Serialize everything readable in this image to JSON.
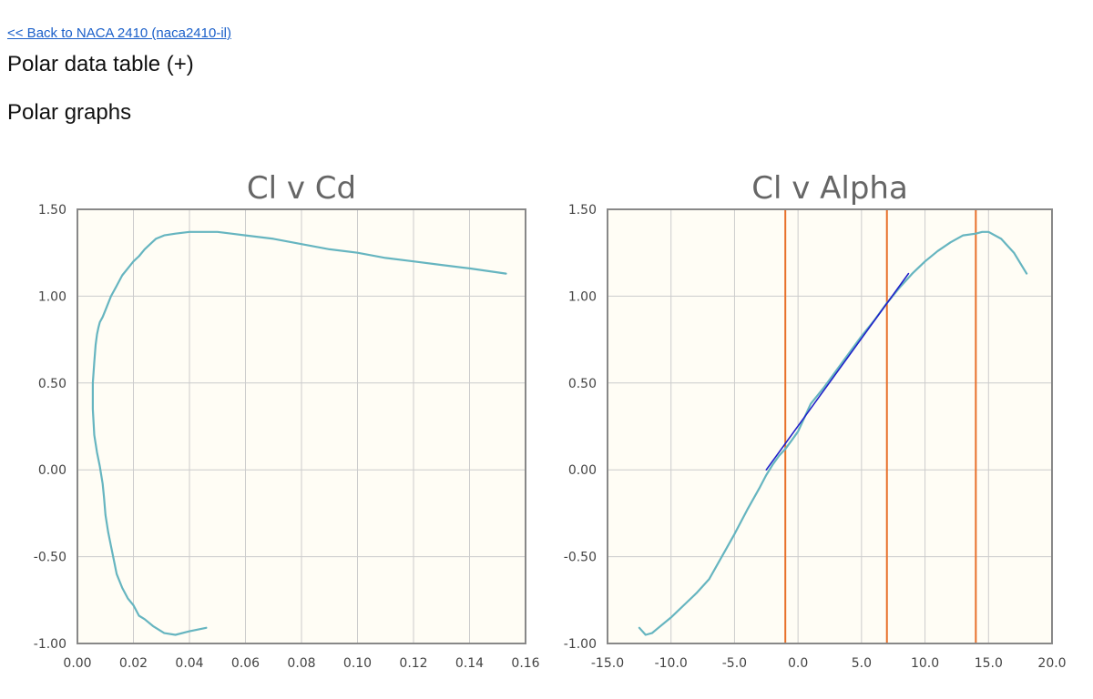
{
  "page": {
    "back_link": "<< Back to NACA 2410 (naca2410-il)",
    "polar_table_heading": "Polar data table (+)",
    "polar_graphs_heading": "Polar graphs"
  },
  "colors": {
    "plot_background": "#fffdf5",
    "grid": "#cccccc",
    "frame": "#888888",
    "curve": "#66b5c0",
    "fit_line": "#1f1fc9",
    "marker_lines": "#e8702a"
  },
  "chart_data": [
    {
      "type": "line",
      "title": "Cl v Cd",
      "xlabel": "",
      "ylabel": "",
      "xlim": [
        0.0,
        0.16
      ],
      "ylim": [
        -1.0,
        1.5
      ],
      "x_ticks": [
        "0.00",
        "0.02",
        "0.04",
        "0.06",
        "0.08",
        "0.10",
        "0.12",
        "0.14",
        "0.16"
      ],
      "y_ticks": [
        "1.50",
        "1.00",
        "0.50",
        "0.00",
        "-0.50",
        "-1.00"
      ],
      "grid": true,
      "series": [
        {
          "x": [
            0.046,
            0.04,
            0.035,
            0.031,
            0.027,
            0.024,
            0.022,
            0.02,
            0.018,
            0.016,
            0.014,
            0.013,
            0.012,
            0.011,
            0.01,
            0.0095,
            0.009,
            0.008,
            0.007,
            0.006,
            0.0055,
            0.0055,
            0.006,
            0.0065,
            0.007,
            0.0075,
            0.008,
            0.009,
            0.01,
            0.012,
            0.014,
            0.016,
            0.018,
            0.02,
            0.022,
            0.024,
            0.026,
            0.028,
            0.031,
            0.035,
            0.04,
            0.045,
            0.05,
            0.055,
            0.06,
            0.07,
            0.08,
            0.09,
            0.1,
            0.11,
            0.12,
            0.13,
            0.14,
            0.153
          ],
          "y": [
            -0.91,
            -0.93,
            -0.95,
            -0.94,
            -0.9,
            -0.86,
            -0.84,
            -0.78,
            -0.74,
            -0.68,
            -0.6,
            -0.52,
            -0.44,
            -0.36,
            -0.26,
            -0.16,
            -0.08,
            0.02,
            0.1,
            0.2,
            0.35,
            0.5,
            0.62,
            0.72,
            0.78,
            0.82,
            0.85,
            0.88,
            0.92,
            1.0,
            1.06,
            1.12,
            1.16,
            1.2,
            1.23,
            1.27,
            1.3,
            1.33,
            1.35,
            1.36,
            1.37,
            1.37,
            1.37,
            1.36,
            1.35,
            1.33,
            1.3,
            1.27,
            1.25,
            1.22,
            1.2,
            1.18,
            1.16,
            1.13
          ]
        }
      ]
    },
    {
      "type": "line",
      "title": "Cl v Alpha",
      "xlabel": "",
      "ylabel": "",
      "xlim": [
        -15,
        20
      ],
      "ylim": [
        -1.0,
        1.5
      ],
      "x_ticks": [
        "-15.0",
        "-10.0",
        "-5.0",
        "0.0",
        "5.0",
        "10.0",
        "15.0",
        "20.0"
      ],
      "y_ticks": [
        "1.50",
        "1.00",
        "0.50",
        "0.00",
        "-0.50",
        "-1.00"
      ],
      "grid": true,
      "vertical_lines": [
        -1.0,
        7.0,
        14.0
      ],
      "series": [
        {
          "x": [
            -12.5,
            -12.0,
            -11.5,
            -11.0,
            -10.0,
            -9.0,
            -8.0,
            -7.0,
            -6.0,
            -5.0,
            -4.0,
            -3.0,
            -2.5,
            -2.0,
            -1.5,
            -1.0,
            -0.5,
            0.0,
            0.5,
            1.0,
            2.0,
            3.0,
            4.0,
            5.0,
            6.0,
            7.0,
            8.0,
            9.0,
            10.0,
            11.0,
            12.0,
            13.0,
            14.0,
            14.5,
            15.0,
            16.0,
            17.0,
            18.0
          ],
          "y": [
            -0.91,
            -0.95,
            -0.94,
            -0.91,
            -0.85,
            -0.78,
            -0.71,
            -0.63,
            -0.5,
            -0.37,
            -0.23,
            -0.1,
            -0.03,
            0.03,
            0.08,
            0.12,
            0.17,
            0.22,
            0.3,
            0.38,
            0.47,
            0.57,
            0.67,
            0.77,
            0.86,
            0.96,
            1.05,
            1.13,
            1.2,
            1.26,
            1.31,
            1.35,
            1.36,
            1.37,
            1.37,
            1.33,
            1.25,
            1.13
          ]
        },
        {
          "x": [
            -2.5,
            8.7
          ],
          "y": [
            0.0,
            1.13
          ]
        }
      ]
    }
  ]
}
